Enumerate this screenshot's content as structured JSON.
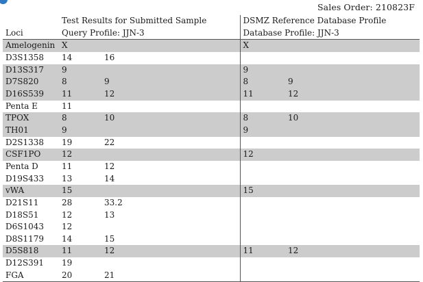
{
  "sales_order": "Sales Order: 210823F",
  "brand_color": "#2f79c2",
  "shade_color": "#cccccc",
  "header": {
    "loci_label": "Loci",
    "query_title": "Test Results for Submitted Sample",
    "query_subtitle": "Query Profile: JJN-3",
    "reference_title": "DSMZ Reference Database Profile",
    "reference_subtitle": "Database Profile: JJN-3"
  },
  "rows": [
    {
      "locus": "Amelogenin",
      "q1": "X",
      "q2": "",
      "r1": "X",
      "r2": "",
      "shaded": true
    },
    {
      "locus": "D3S1358",
      "q1": "14",
      "q2": "16",
      "r1": "",
      "r2": "",
      "shaded": false
    },
    {
      "locus": "D13S317",
      "q1": "9",
      "q2": "",
      "r1": "9",
      "r2": "",
      "shaded": true
    },
    {
      "locus": "D7S820",
      "q1": "8",
      "q2": "9",
      "r1": "8",
      "r2": "9",
      "shaded": true
    },
    {
      "locus": "D16S539",
      "q1": "11",
      "q2": "12",
      "r1": "11",
      "r2": "12",
      "shaded": true
    },
    {
      "locus": "Penta E",
      "q1": "11",
      "q2": "",
      "r1": "",
      "r2": "",
      "shaded": false
    },
    {
      "locus": "TPOX",
      "q1": "8",
      "q2": "10",
      "r1": "8",
      "r2": "10",
      "shaded": true
    },
    {
      "locus": "TH01",
      "q1": "9",
      "q2": "",
      "r1": "9",
      "r2": "",
      "shaded": true
    },
    {
      "locus": "D2S1338",
      "q1": "19",
      "q2": "22",
      "r1": "",
      "r2": "",
      "shaded": false
    },
    {
      "locus": "CSF1PO",
      "q1": "12",
      "q2": "",
      "r1": "12",
      "r2": "",
      "shaded": true
    },
    {
      "locus": "Penta D",
      "q1": "11",
      "q2": "12",
      "r1": "",
      "r2": "",
      "shaded": false
    },
    {
      "locus": "D19S433",
      "q1": "13",
      "q2": "14",
      "r1": "",
      "r2": "",
      "shaded": false
    },
    {
      "locus": "vWA",
      "q1": "15",
      "q2": "",
      "r1": "15",
      "r2": "",
      "shaded": true
    },
    {
      "locus": "D21S11",
      "q1": "28",
      "q2": "33.2",
      "r1": "",
      "r2": "",
      "shaded": false
    },
    {
      "locus": "D18S51",
      "q1": "12",
      "q2": "13",
      "r1": "",
      "r2": "",
      "shaded": false
    },
    {
      "locus": "D6S1043",
      "q1": "12",
      "q2": "",
      "r1": "",
      "r2": "",
      "shaded": false
    },
    {
      "locus": "D8S1179",
      "q1": "14",
      "q2": "15",
      "r1": "",
      "r2": "",
      "shaded": false
    },
    {
      "locus": "D5S818",
      "q1": "11",
      "q2": "12",
      "r1": "11",
      "r2": "12",
      "shaded": true
    },
    {
      "locus": "D12S391",
      "q1": "19",
      "q2": "",
      "r1": "",
      "r2": "",
      "shaded": false
    },
    {
      "locus": "FGA",
      "q1": "20",
      "q2": "21",
      "r1": "",
      "r2": "",
      "shaded": false
    }
  ]
}
